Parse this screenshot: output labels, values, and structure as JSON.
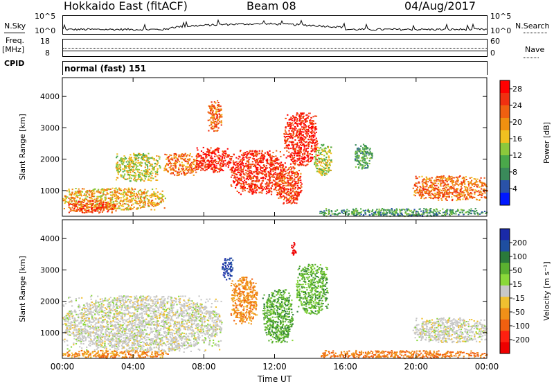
{
  "header": {
    "title": "Hokkaido East (fitACF)",
    "beam": "Beam 08",
    "date": "04/Aug/2017"
  },
  "left_labels": {
    "nsky": "N.Sky",
    "freq": "Freq.",
    "freq_unit": "[MHz]",
    "cpid": "CPID"
  },
  "right_labels": {
    "nsearch": "N.Search",
    "nave": "Nave"
  },
  "noise_panel": {
    "left_ticks": [
      "10^5",
      "10^0"
    ],
    "right_ticks": [
      "10^5",
      "10^0"
    ]
  },
  "freq_panel": {
    "left_ticks": [
      "18",
      "8"
    ],
    "right_ticks": [
      "60",
      "0"
    ]
  },
  "cpid_panel": {
    "text": "normal (fast) 151"
  },
  "colors": {
    "power_scale": [
      "#0018ff",
      "#2a52a8",
      "#3a8a5a",
      "#4aa84a",
      "#8cc83c",
      "#f0c020",
      "#f09010",
      "#f06010",
      "#f03010",
      "#ff0000"
    ],
    "velocity_scale": [
      "#1a2aa8",
      "#1e4ea0",
      "#2a7a3a",
      "#5ab030",
      "#8ad83a",
      "#c8c8c8",
      "#f0c030",
      "#f09018",
      "#f06010",
      "#ff2010",
      "#ee0000"
    ]
  },
  "chart_data": [
    {
      "type": "heatmap",
      "panel": "power",
      "ylabel": "Slant Range [km]",
      "ylim": [
        180,
        4600
      ],
      "yticks": [
        "1000",
        "2000",
        "3000",
        "4000"
      ],
      "xlim": [
        "00:00",
        "24:00"
      ],
      "colorbar": {
        "label": "Power [dB]",
        "ticks": [
          "4",
          "8",
          "12",
          "16",
          "20",
          "24",
          "28"
        ],
        "range": [
          0,
          30
        ]
      },
      "blobs": [
        {
          "t0": 0.0,
          "t1": 5.8,
          "r0": 400,
          "r1": 1100,
          "v": 18
        },
        {
          "t0": 0.2,
          "t1": 3.0,
          "r0": 300,
          "r1": 700,
          "v": 24
        },
        {
          "t0": 3.0,
          "t1": 5.5,
          "r0": 1300,
          "r1": 2200,
          "v": 15
        },
        {
          "t0": 5.7,
          "t1": 7.6,
          "r0": 1500,
          "r1": 2200,
          "v": 22
        },
        {
          "t0": 7.5,
          "t1": 9.5,
          "r0": 1600,
          "r1": 2400,
          "v": 27
        },
        {
          "t0": 8.2,
          "t1": 9.0,
          "r0": 2900,
          "r1": 3900,
          "v": 22
        },
        {
          "t0": 9.5,
          "t1": 12.5,
          "r0": 900,
          "r1": 2300,
          "v": 26
        },
        {
          "t0": 12.0,
          "t1": 13.5,
          "r0": 600,
          "r1": 1800,
          "v": 25
        },
        {
          "t0": 12.5,
          "t1": 14.4,
          "r0": 1800,
          "r1": 3500,
          "v": 27
        },
        {
          "t0": 14.2,
          "t1": 15.2,
          "r0": 1500,
          "r1": 2500,
          "v": 14
        },
        {
          "t0": 16.5,
          "t1": 17.5,
          "r0": 1700,
          "r1": 2500,
          "v": 10
        },
        {
          "t0": 19.8,
          "t1": 24.0,
          "r0": 700,
          "r1": 1500,
          "v": 22
        },
        {
          "t0": 14.5,
          "t1": 24.0,
          "r0": 200,
          "r1": 450,
          "v": 9
        }
      ]
    },
    {
      "type": "heatmap",
      "panel": "velocity",
      "ylabel": "Slant Range [km]",
      "ylim": [
        180,
        4600
      ],
      "yticks": [
        "1000",
        "2000",
        "3000",
        "4000"
      ],
      "xlim": [
        "00:00",
        "24:00"
      ],
      "xticks": [
        "00:00",
        "04:00",
        "08:00",
        "12:00",
        "16:00",
        "20:00",
        "00:00"
      ],
      "xlabel": "Time UT",
      "colorbar": {
        "label": "Velocity [m s⁻¹]",
        "ticks": [
          "200",
          "100",
          "50",
          "15",
          "-15",
          "-50",
          "-100",
          "-200"
        ]
      },
      "blobs": [
        {
          "t0": 0.0,
          "t1": 9.0,
          "r0": 400,
          "r1": 2200,
          "v": 0
        },
        {
          "t0": 0.0,
          "t1": 6.0,
          "r0": 200,
          "r1": 450,
          "v": -40
        },
        {
          "t0": 9.0,
          "t1": 9.6,
          "r0": 2700,
          "r1": 3400,
          "v": 200
        },
        {
          "t0": 9.5,
          "t1": 11.0,
          "r0": 1300,
          "r1": 2800,
          "v": -40
        },
        {
          "t0": 11.3,
          "t1": 13.0,
          "r0": 700,
          "r1": 2400,
          "v": 40
        },
        {
          "t0": 13.2,
          "t1": 15.0,
          "r0": 1600,
          "r1": 3200,
          "v": 35
        },
        {
          "t0": 12.9,
          "t1": 13.2,
          "r0": 3500,
          "r1": 3900,
          "v": -200
        },
        {
          "t0": 19.8,
          "t1": 24.0,
          "r0": 700,
          "r1": 1500,
          "v": 0
        },
        {
          "t0": 14.5,
          "t1": 24.0,
          "r0": 200,
          "r1": 450,
          "v": -50
        }
      ]
    }
  ]
}
